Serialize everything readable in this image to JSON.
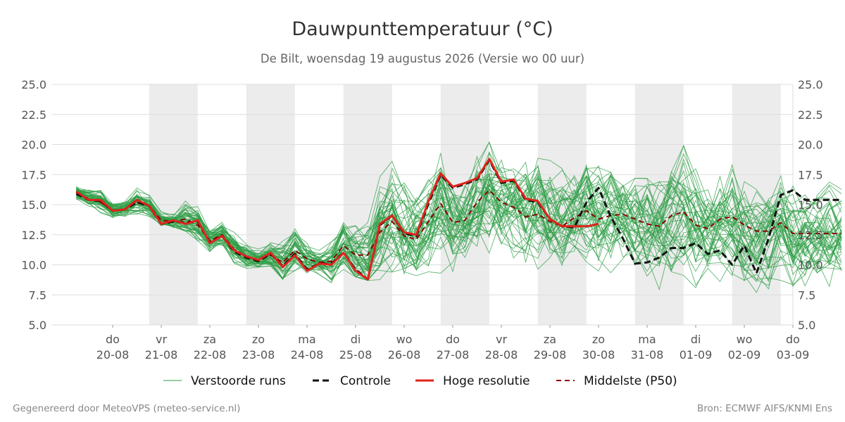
{
  "title": "Dauwpunttemperatuur (°C)",
  "subtitle": "De Bilt, woensdag 19 augustus 2026 (Versie wo 00 uur)",
  "footer": {
    "left": "Gegenereerd door MeteoVPS (meteo-service.nl)",
    "right": "Bron: ECMWF AIFS/KNMI Ens"
  },
  "legend": [
    {
      "label": "Verstoorde runs"
    },
    {
      "label": "Controle"
    },
    {
      "label": "Hoge resolutie"
    },
    {
      "label": "Middelste (P50)"
    }
  ],
  "colors": {
    "members": "#2e9e45",
    "control": "#111111",
    "hires": "#e0221a",
    "median": "#8b0000",
    "shade": "#ececec",
    "grid": "#dddddd"
  },
  "chart_data": {
    "type": "line",
    "x_unit": "days since 19-08 00 UTC",
    "x_range": [
      0,
      15.25
    ],
    "ylim": [
      5.0,
      25.0
    ],
    "yticks": [
      "5.0",
      "7.5",
      "10.0",
      "12.5",
      "15.0",
      "17.5",
      "20.0",
      "22.5",
      "25.0"
    ],
    "xticks": [
      {
        "day": "do",
        "date": "20-08"
      },
      {
        "day": "vr",
        "date": "21-08"
      },
      {
        "day": "za",
        "date": "22-08"
      },
      {
        "day": "zo",
        "date": "23-08"
      },
      {
        "day": "ma",
        "date": "24-08"
      },
      {
        "day": "di",
        "date": "25-08"
      },
      {
        "day": "wo",
        "date": "26-08"
      },
      {
        "day": "do",
        "date": "27-08"
      },
      {
        "day": "vr",
        "date": "28-08"
      },
      {
        "day": "za",
        "date": "29-08"
      },
      {
        "day": "zo",
        "date": "30-08"
      },
      {
        "day": "ma",
        "date": "31-08"
      },
      {
        "day": "di",
        "date": "01-09"
      },
      {
        "day": "wo",
        "date": "02-09"
      },
      {
        "day": "do",
        "date": "03-09"
      }
    ],
    "weekend_shading": [
      [
        0.75,
        1.75
      ],
      [
        2.75,
        3.75
      ],
      [
        4.75,
        5.75
      ],
      [
        6.75,
        7.75
      ],
      [
        8.75,
        9.75
      ],
      [
        10.75,
        11.75
      ],
      [
        12.75,
        13.75
      ]
    ],
    "series": [
      {
        "name": "Hoge resolutie",
        "x": [
          -0.75,
          -0.5,
          -0.25,
          0,
          0.25,
          0.5,
          0.75,
          1,
          1.25,
          1.5,
          1.75,
          2,
          2.25,
          2.5,
          2.75,
          3,
          3.25,
          3.5,
          3.75,
          4,
          4.25,
          4.5,
          4.75,
          5,
          5.25,
          5.5,
          5.75,
          6,
          6.25,
          6.5,
          6.75,
          7,
          7.25,
          7.5,
          7.75,
          8,
          8.25,
          8.5,
          8.75,
          9,
          9.25,
          9.5,
          9.75,
          10
        ],
        "y": [
          16.1,
          15.4,
          15.4,
          14.5,
          14.6,
          15.4,
          14.9,
          13.4,
          13.7,
          13.4,
          13.7,
          11.8,
          12.4,
          11.2,
          10.7,
          10.4,
          11.0,
          9.8,
          10.8,
          9.5,
          10.1,
          10.0,
          11.0,
          9.5,
          8.8,
          13.4,
          14.1,
          12.7,
          12.5,
          15.3,
          17.6,
          16.5,
          16.8,
          17.2,
          18.8,
          16.9,
          17.1,
          15.5,
          15.3,
          13.8,
          13.2,
          13.2,
          13.2,
          13.4
        ]
      },
      {
        "name": "Controle",
        "x": [
          -0.75,
          -0.5,
          -0.25,
          0,
          0.25,
          0.5,
          0.75,
          1,
          1.25,
          1.5,
          1.75,
          2,
          2.25,
          2.5,
          2.75,
          3,
          3.25,
          3.5,
          3.75,
          4,
          4.25,
          4.5,
          4.75,
          5,
          5.25,
          5.5,
          5.75,
          6,
          6.25,
          6.5,
          6.75,
          7,
          7.25,
          7.5,
          7.75,
          8,
          8.25,
          8.5,
          8.75,
          9,
          9.25,
          9.5,
          9.75,
          10,
          10.25,
          10.5,
          10.75,
          11,
          11.25,
          11.5,
          11.75,
          12,
          12.25,
          12.5,
          12.75,
          13,
          13.25,
          13.5,
          13.75,
          14,
          14.25,
          14.5,
          14.75,
          15
        ],
        "y": [
          15.9,
          15.4,
          15.3,
          14.5,
          14.6,
          15.2,
          14.9,
          13.4,
          13.6,
          13.5,
          13.6,
          11.9,
          12.4,
          11.1,
          10.6,
          10.3,
          10.9,
          9.9,
          10.9,
          9.6,
          10.1,
          10.1,
          11.0,
          9.6,
          8.8,
          13.3,
          14.1,
          12.6,
          12.4,
          15.1,
          17.5,
          16.4,
          16.7,
          17.1,
          18.7,
          16.8,
          17.0,
          15.4,
          15.2,
          13.8,
          13.2,
          13.1,
          15.2,
          16.4,
          14.0,
          12.2,
          10.1,
          10.2,
          10.6,
          11.4,
          11.4,
          11.8,
          10.9,
          11.2,
          10.0,
          11.6,
          9.3,
          12.2,
          15.8,
          16.2,
          15.4,
          15.4,
          15.4,
          15.4
        ]
      },
      {
        "name": "Middelste (P50)",
        "x": [
          -0.75,
          -0.5,
          -0.25,
          0,
          0.25,
          0.5,
          0.75,
          1,
          1.25,
          1.5,
          1.75,
          2,
          2.25,
          2.5,
          2.75,
          3,
          3.25,
          3.5,
          3.75,
          4,
          4.25,
          4.5,
          4.75,
          5,
          5.25,
          5.5,
          5.75,
          6,
          6.25,
          6.5,
          6.75,
          7,
          7.25,
          7.5,
          7.75,
          8,
          8.25,
          8.5,
          8.75,
          9,
          9.25,
          9.5,
          9.75,
          10,
          10.25,
          10.5,
          10.75,
          11,
          11.25,
          11.5,
          11.75,
          12,
          12.25,
          12.5,
          12.75,
          13,
          13.25,
          13.5,
          13.75,
          14,
          14.25,
          14.5,
          14.75,
          15
        ],
        "y": [
          16.0,
          15.5,
          15.2,
          14.5,
          14.6,
          15.2,
          14.9,
          13.7,
          13.6,
          13.8,
          13.3,
          12.0,
          12.5,
          11.3,
          10.7,
          10.4,
          10.8,
          10.2,
          11.2,
          10.5,
          10.2,
          10.3,
          11.6,
          10.8,
          10.8,
          12.7,
          13.6,
          12.4,
          12.1,
          13.6,
          15.1,
          13.5,
          13.7,
          15.2,
          16.2,
          15.2,
          14.8,
          14.0,
          14.2,
          13.6,
          13.2,
          13.9,
          14.5,
          13.8,
          14.1,
          14.2,
          13.8,
          13.4,
          13.2,
          14.1,
          14.4,
          13.3,
          13.0,
          13.8,
          14.0,
          13.3,
          12.8,
          12.8,
          13.5,
          12.6,
          12.6,
          12.6,
          12.6,
          12.6
        ]
      }
    ],
    "ensemble_members": {
      "name": "Verstoorde runs",
      "count": 50,
      "x_step": 0.25,
      "x_start": -0.75,
      "x_end": 15.0,
      "envelope_low": [
        15.2,
        14.6,
        14.3,
        13.8,
        13.9,
        14.2,
        13.9,
        13.0,
        13.1,
        12.8,
        11.9,
        10.9,
        11.5,
        9.9,
        9.7,
        9.8,
        9.9,
        8.8,
        9.5,
        9.0,
        9.2,
        8.0,
        9.6,
        9.0,
        8.7,
        8.6,
        9.4,
        8.8,
        9.1,
        9.4,
        9.3,
        9.2,
        9.7,
        10.0,
        9.6,
        9.6,
        9.2,
        9.3,
        9.1,
        8.9,
        9.0,
        9.3,
        9.1,
        8.5,
        8.3,
        7.9,
        6.9,
        7.6,
        7.0,
        7.4,
        7.9,
        8.1,
        8.9,
        8.6,
        9.1,
        8.7,
        7.7,
        8.0,
        7.6,
        7.8,
        7.9,
        8.6,
        8.2,
        8.7
      ],
      "envelope_high": [
        16.9,
        16.3,
        16.2,
        15.2,
        15.4,
        16.4,
        15.8,
        14.4,
        14.4,
        16.2,
        15.2,
        13.1,
        13.6,
        12.7,
        12.0,
        11.6,
        12.4,
        12.9,
        13.5,
        11.8,
        11.2,
        11.9,
        14.4,
        14.6,
        17.7,
        17.8,
        19.2,
        18.1,
        17.6,
        18.5,
        19.3,
        18.4,
        17.8,
        19.0,
        20.2,
        19.1,
        18.8,
        19.7,
        19.1,
        18.8,
        18.0,
        17.6,
        18.6,
        18.3,
        17.7,
        16.6,
        17.2,
        17.5,
        16.9,
        18.7,
        19.9,
        18.2,
        17.0,
        17.4,
        19.2,
        19.1,
        17.4,
        17.2,
        17.4,
        17.2,
        17.5,
        17.0,
        16.9,
        16.7
      ]
    }
  }
}
